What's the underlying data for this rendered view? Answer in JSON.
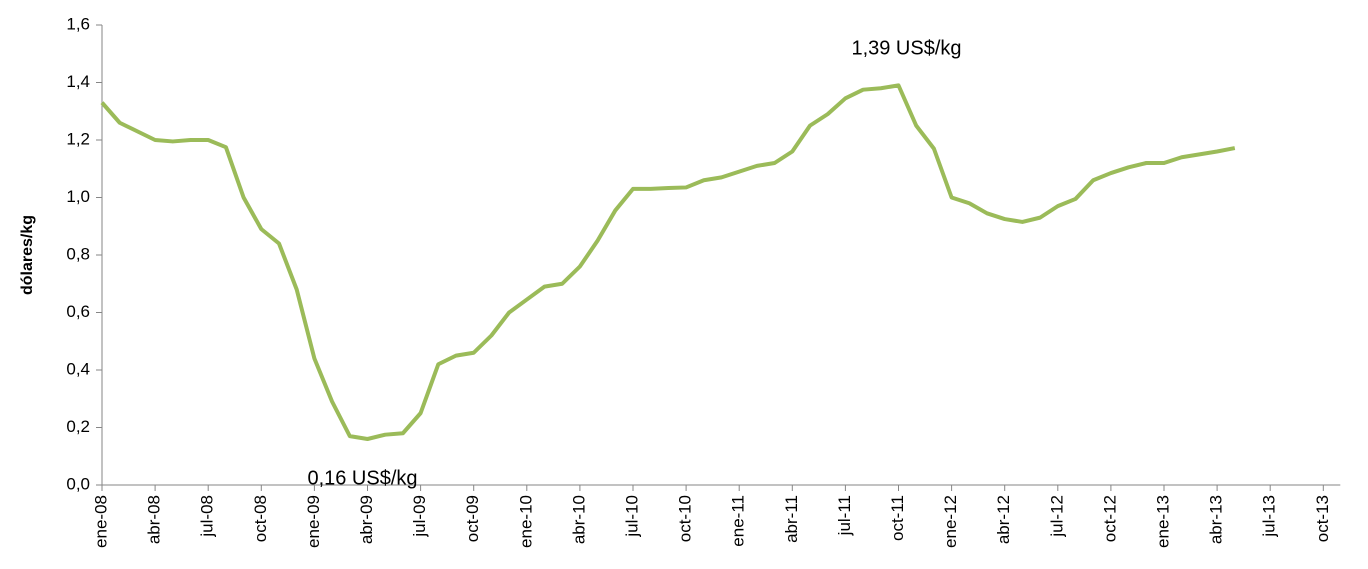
{
  "chart_data": {
    "type": "line",
    "y_label": "dólares/kg",
    "categories": [
      "ene-08",
      null,
      null,
      "abr-08",
      null,
      null,
      "jul-08",
      null,
      null,
      "oct-08",
      null,
      null,
      "ene-09",
      null,
      null,
      "abr-09",
      null,
      null,
      "jul-09",
      null,
      null,
      "oct-09",
      null,
      null,
      "ene-10",
      null,
      null,
      "abr-10",
      null,
      null,
      "jul-10",
      null,
      null,
      "oct-10",
      null,
      null,
      "ene-11",
      null,
      null,
      "abr-11",
      null,
      null,
      "jul-11",
      null,
      null,
      "oct-11",
      null,
      null,
      "ene-12",
      null,
      null,
      "abr-12",
      null,
      null,
      "jul-12",
      null,
      null,
      "oct-12",
      null,
      null,
      "ene-13",
      null,
      null,
      "abr-13",
      null,
      null,
      "jul-13",
      null,
      null,
      "oct-13"
    ],
    "series": [
      {
        "name": "precio",
        "color": "#9bbb59",
        "values": [
          1.33,
          1.26,
          1.23,
          1.2,
          1.195,
          1.2,
          1.2,
          1.175,
          1.0,
          0.89,
          0.84,
          0.68,
          0.44,
          0.29,
          0.17,
          0.16,
          0.175,
          0.18,
          0.25,
          0.42,
          0.45,
          0.46,
          0.52,
          0.6,
          0.645,
          0.69,
          0.7,
          0.76,
          0.85,
          0.955,
          1.03,
          1.03,
          1.033,
          1.035,
          1.06,
          1.07,
          1.09,
          1.11,
          1.12,
          1.16,
          1.25,
          1.29,
          1.345,
          1.375,
          1.38,
          1.39,
          1.25,
          1.17,
          1.0,
          0.98,
          0.945,
          0.925,
          0.915,
          0.93,
          0.97,
          0.995,
          1.06,
          1.085,
          1.105,
          1.12,
          1.12,
          1.14,
          1.15,
          1.16,
          1.172,
          null,
          null,
          null,
          null,
          null
        ]
      }
    ],
    "annotations": [
      {
        "text": "1,39 US$/kg",
        "index": 45
      },
      {
        "text": "0,16 US$/kg",
        "index": 15
      }
    ],
    "ylim": [
      0,
      1.6
    ],
    "yticks": [
      {
        "value": 0,
        "label": "0,0"
      },
      {
        "value": 0.2,
        "label": "0,2"
      },
      {
        "value": 0.4,
        "label": "0,4"
      },
      {
        "value": 0.6,
        "label": "0,6"
      },
      {
        "value": 0.8,
        "label": "0,8"
      },
      {
        "value": 1.0,
        "label": "1,0"
      },
      {
        "value": 1.2,
        "label": "1,2"
      },
      {
        "value": 1.4,
        "label": "1,4"
      },
      {
        "value": 1.6,
        "label": "1,6"
      }
    ],
    "grid": false
  }
}
